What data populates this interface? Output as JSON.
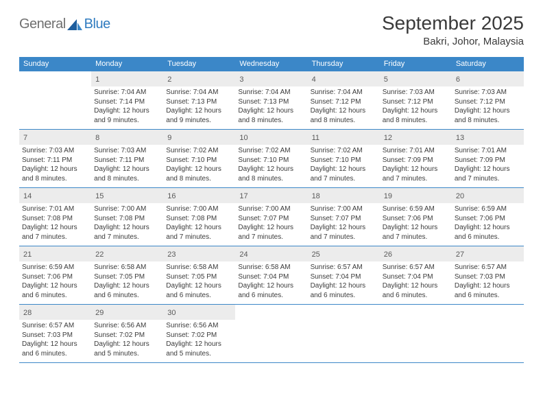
{
  "brand": {
    "part1": "General",
    "part2": "Blue"
  },
  "title": "September 2025",
  "location": "Bakri, Johor, Malaysia",
  "accent_color": "#3b87c8",
  "day_names": [
    "Sunday",
    "Monday",
    "Tuesday",
    "Wednesday",
    "Thursday",
    "Friday",
    "Saturday"
  ],
  "start_offset": 1,
  "days": [
    {
      "n": 1,
      "sr": "7:04 AM",
      "ss": "7:14 PM",
      "dl": "12 hours and 9 minutes."
    },
    {
      "n": 2,
      "sr": "7:04 AM",
      "ss": "7:13 PM",
      "dl": "12 hours and 9 minutes."
    },
    {
      "n": 3,
      "sr": "7:04 AM",
      "ss": "7:13 PM",
      "dl": "12 hours and 8 minutes."
    },
    {
      "n": 4,
      "sr": "7:04 AM",
      "ss": "7:12 PM",
      "dl": "12 hours and 8 minutes."
    },
    {
      "n": 5,
      "sr": "7:03 AM",
      "ss": "7:12 PM",
      "dl": "12 hours and 8 minutes."
    },
    {
      "n": 6,
      "sr": "7:03 AM",
      "ss": "7:12 PM",
      "dl": "12 hours and 8 minutes."
    },
    {
      "n": 7,
      "sr": "7:03 AM",
      "ss": "7:11 PM",
      "dl": "12 hours and 8 minutes."
    },
    {
      "n": 8,
      "sr": "7:03 AM",
      "ss": "7:11 PM",
      "dl": "12 hours and 8 minutes."
    },
    {
      "n": 9,
      "sr": "7:02 AM",
      "ss": "7:10 PM",
      "dl": "12 hours and 8 minutes."
    },
    {
      "n": 10,
      "sr": "7:02 AM",
      "ss": "7:10 PM",
      "dl": "12 hours and 8 minutes."
    },
    {
      "n": 11,
      "sr": "7:02 AM",
      "ss": "7:10 PM",
      "dl": "12 hours and 7 minutes."
    },
    {
      "n": 12,
      "sr": "7:01 AM",
      "ss": "7:09 PM",
      "dl": "12 hours and 7 minutes."
    },
    {
      "n": 13,
      "sr": "7:01 AM",
      "ss": "7:09 PM",
      "dl": "12 hours and 7 minutes."
    },
    {
      "n": 14,
      "sr": "7:01 AM",
      "ss": "7:08 PM",
      "dl": "12 hours and 7 minutes."
    },
    {
      "n": 15,
      "sr": "7:00 AM",
      "ss": "7:08 PM",
      "dl": "12 hours and 7 minutes."
    },
    {
      "n": 16,
      "sr": "7:00 AM",
      "ss": "7:08 PM",
      "dl": "12 hours and 7 minutes."
    },
    {
      "n": 17,
      "sr": "7:00 AM",
      "ss": "7:07 PM",
      "dl": "12 hours and 7 minutes."
    },
    {
      "n": 18,
      "sr": "7:00 AM",
      "ss": "7:07 PM",
      "dl": "12 hours and 7 minutes."
    },
    {
      "n": 19,
      "sr": "6:59 AM",
      "ss": "7:06 PM",
      "dl": "12 hours and 7 minutes."
    },
    {
      "n": 20,
      "sr": "6:59 AM",
      "ss": "7:06 PM",
      "dl": "12 hours and 6 minutes."
    },
    {
      "n": 21,
      "sr": "6:59 AM",
      "ss": "7:06 PM",
      "dl": "12 hours and 6 minutes."
    },
    {
      "n": 22,
      "sr": "6:58 AM",
      "ss": "7:05 PM",
      "dl": "12 hours and 6 minutes."
    },
    {
      "n": 23,
      "sr": "6:58 AM",
      "ss": "7:05 PM",
      "dl": "12 hours and 6 minutes."
    },
    {
      "n": 24,
      "sr": "6:58 AM",
      "ss": "7:04 PM",
      "dl": "12 hours and 6 minutes."
    },
    {
      "n": 25,
      "sr": "6:57 AM",
      "ss": "7:04 PM",
      "dl": "12 hours and 6 minutes."
    },
    {
      "n": 26,
      "sr": "6:57 AM",
      "ss": "7:04 PM",
      "dl": "12 hours and 6 minutes."
    },
    {
      "n": 27,
      "sr": "6:57 AM",
      "ss": "7:03 PM",
      "dl": "12 hours and 6 minutes."
    },
    {
      "n": 28,
      "sr": "6:57 AM",
      "ss": "7:03 PM",
      "dl": "12 hours and 6 minutes."
    },
    {
      "n": 29,
      "sr": "6:56 AM",
      "ss": "7:02 PM",
      "dl": "12 hours and 5 minutes."
    },
    {
      "n": 30,
      "sr": "6:56 AM",
      "ss": "7:02 PM",
      "dl": "12 hours and 5 minutes."
    }
  ],
  "labels": {
    "sunrise": "Sunrise:",
    "sunset": "Sunset:",
    "daylight": "Daylight:"
  }
}
